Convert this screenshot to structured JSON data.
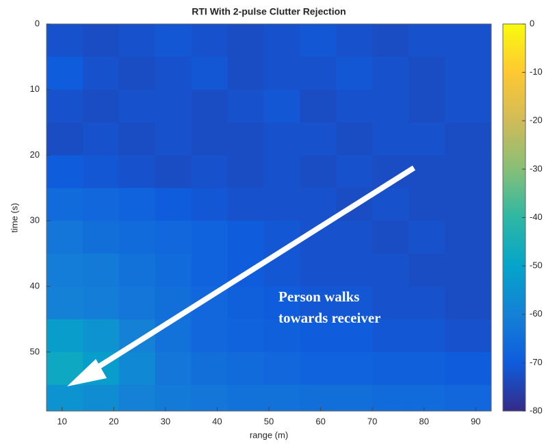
{
  "chart_data": {
    "type": "heatmap",
    "title": "RTI With 2-pulse Clutter Rejection",
    "xlabel": "range (m)",
    "ylabel": "time (s)",
    "xbins": [
      7,
      14,
      21,
      28,
      35,
      42,
      49,
      56,
      63,
      70,
      77,
      84,
      93
    ],
    "ybins": [
      0,
      5,
      10,
      15,
      20,
      25,
      30,
      35,
      40,
      45,
      50,
      55,
      59
    ],
    "z": [
      [
        -72,
        -73,
        -72,
        -71,
        -72,
        -73,
        -72,
        -71,
        -72,
        -73,
        -72,
        -72
      ],
      [
        -70,
        -72,
        -73,
        -72,
        -71,
        -73,
        -72,
        -72,
        -71,
        -72,
        -73,
        -72
      ],
      [
        -72,
        -73,
        -72,
        -72,
        -73,
        -72,
        -71,
        -73,
        -72,
        -72,
        -73,
        -72
      ],
      [
        -73,
        -72,
        -73,
        -72,
        -73,
        -73,
        -72,
        -72,
        -73,
        -72,
        -72,
        -73
      ],
      [
        -70,
        -71,
        -72,
        -73,
        -72,
        -73,
        -72,
        -73,
        -72,
        -73,
        -73,
        -73
      ],
      [
        -66,
        -67,
        -68,
        -70,
        -71,
        -72,
        -72,
        -72,
        -73,
        -72,
        -73,
        -73
      ],
      [
        -63,
        -65,
        -66,
        -67,
        -68,
        -70,
        -71,
        -72,
        -72,
        -73,
        -72,
        -73
      ],
      [
        -61,
        -62,
        -64,
        -66,
        -68,
        -70,
        -71,
        -72,
        -72,
        -72,
        -73,
        -73
      ],
      [
        -60,
        -61,
        -63,
        -65,
        -67,
        -69,
        -70,
        -71,
        -71,
        -72,
        -72,
        -73
      ],
      [
        -52,
        -55,
        -60,
        -64,
        -67,
        -68,
        -69,
        -70,
        -70,
        -71,
        -71,
        -72
      ],
      [
        -48,
        -52,
        -58,
        -63,
        -65,
        -66,
        -67,
        -68,
        -68,
        -69,
        -69,
        -70
      ],
      [
        -55,
        -57,
        -60,
        -62,
        -63,
        -64,
        -64,
        -65,
        -65,
        -66,
        -66,
        -67
      ]
    ],
    "xlim": [
      7,
      93
    ],
    "ylim": [
      0,
      59
    ],
    "yreversed": true,
    "xticks": [
      10,
      20,
      30,
      40,
      50,
      60,
      70,
      80,
      90
    ],
    "yticks": [
      0,
      10,
      20,
      30,
      40,
      50
    ],
    "clim": [
      -80,
      0
    ],
    "cticks": [
      0,
      -10,
      -20,
      -30,
      -40,
      -50,
      -60,
      -70,
      -80
    ],
    "colormap": [
      "#352a87",
      "#0f5cdd",
      "#1481d6",
      "#06a4ca",
      "#2eb7a4",
      "#87bf77",
      "#d1bb59",
      "#fec832",
      "#f9fb0e"
    ],
    "annotation": [
      "Person walks",
      "towards receiver"
    ]
  }
}
